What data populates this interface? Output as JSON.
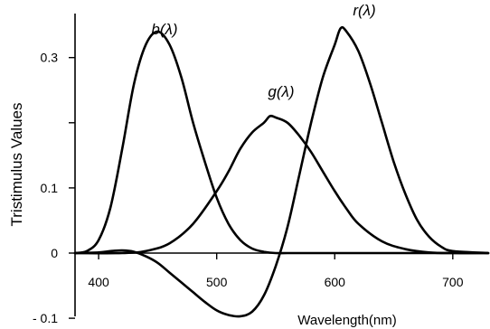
{
  "chart_data": {
    "type": "line",
    "title": "",
    "xlabel": "Wavelength(nm)",
    "ylabel": "Tristimulus Values",
    "xlim": [
      380,
      730
    ],
    "ylim": [
      -0.1,
      0.37
    ],
    "x_ticks": [
      {
        "value": 400,
        "label": "400"
      },
      {
        "value": 500,
        "label": "500"
      },
      {
        "value": 600,
        "label": "600"
      },
      {
        "value": 700,
        "label": "700"
      }
    ],
    "y_ticks": [
      {
        "value": 0.3,
        "label": "0.3"
      },
      {
        "value": 0.2,
        "label": ""
      },
      {
        "value": 0.1,
        "label": "0.1"
      },
      {
        "value": 0,
        "label": "0"
      },
      {
        "value": -0.1,
        "label": "- 0.1"
      }
    ],
    "grid": false,
    "legend": "none",
    "series": [
      {
        "name": "b(λ)",
        "x": [
          380,
          390,
          400,
          410,
          420,
          430,
          440,
          450,
          460,
          470,
          480,
          490,
          500,
          510,
          520,
          530,
          540,
          550,
          560,
          580,
          600,
          650,
          700,
          730
        ],
        "values": [
          0.0,
          0.003,
          0.02,
          0.07,
          0.16,
          0.26,
          0.32,
          0.34,
          0.32,
          0.27,
          0.2,
          0.14,
          0.085,
          0.045,
          0.02,
          0.007,
          0.002,
          0.0,
          0.0,
          0.0,
          0.0,
          0.0,
          0.0,
          0.0
        ]
      },
      {
        "name": "g(λ)",
        "x": [
          380,
          420,
          440,
          460,
          480,
          500,
          510,
          520,
          530,
          540,
          545,
          550,
          560,
          570,
          580,
          590,
          600,
          610,
          620,
          640,
          660,
          680,
          700,
          730
        ],
        "values": [
          0.0,
          0.0,
          0.003,
          0.015,
          0.045,
          0.095,
          0.125,
          0.16,
          0.185,
          0.2,
          0.21,
          0.208,
          0.2,
          0.18,
          0.155,
          0.125,
          0.095,
          0.068,
          0.045,
          0.018,
          0.006,
          0.001,
          0.0,
          0.0
        ]
      },
      {
        "name": "r(λ)",
        "x": [
          380,
          400,
          410,
          420,
          430,
          440,
          450,
          460,
          470,
          480,
          490,
          500,
          510,
          520,
          530,
          540,
          550,
          560,
          570,
          580,
          590,
          600,
          605,
          610,
          620,
          630,
          640,
          650,
          660,
          670,
          680,
          690,
          700,
          730
        ],
        "values": [
          0.0,
          0.001,
          0.003,
          0.004,
          0.002,
          -0.005,
          -0.015,
          -0.03,
          -0.045,
          -0.06,
          -0.075,
          -0.088,
          -0.095,
          -0.097,
          -0.09,
          -0.065,
          -0.02,
          0.04,
          0.12,
          0.2,
          0.27,
          0.32,
          0.345,
          0.34,
          0.31,
          0.26,
          0.2,
          0.14,
          0.09,
          0.05,
          0.025,
          0.01,
          0.003,
          0.0
        ]
      }
    ]
  }
}
